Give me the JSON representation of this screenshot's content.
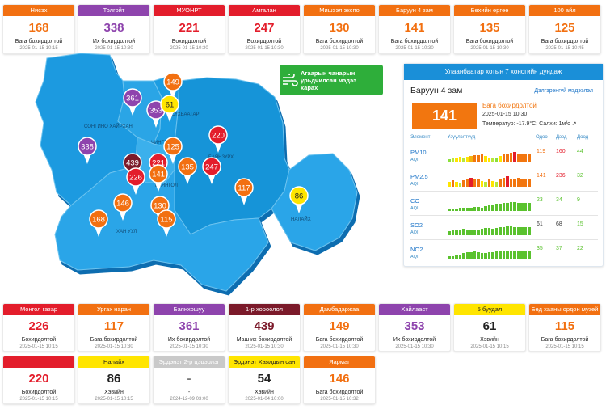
{
  "colors": {
    "good": "#5ac22e",
    "moderate": "#f2760f",
    "unhealthy_sensitive": "#f27011",
    "unhealthy": "#e31d2b",
    "very_unhealthy": "#8e44ad",
    "hazardous": "#7b1a2a",
    "yellow": "#ffe500",
    "unknown": "#c9c9c9"
  },
  "top_cards": [
    {
      "name": "Нисэх",
      "value": "168",
      "level": "Бага бохирдолтой",
      "time": "2025-01-15 10:15",
      "color": "#f27011",
      "value_color": "#f27011"
    },
    {
      "name": "Толгойт",
      "value": "338",
      "level": "Их бохирдолтой",
      "time": "2025-01-15 10:30",
      "color": "#8e44ad",
      "value_color": "#8e44ad"
    },
    {
      "name": "МУОНРТ",
      "value": "221",
      "level": "Бохирдолтой",
      "time": "2025-01-15 10:30",
      "color": "#e31d2b",
      "value_color": "#e31d2b"
    },
    {
      "name": "Амгалан",
      "value": "247",
      "level": "Бохирдолтой",
      "time": "2025-01-15 10:30",
      "color": "#e31d2b",
      "value_color": "#e31d2b"
    },
    {
      "name": "Мишээл экспо",
      "value": "130",
      "level": "Бага бохирдолтой",
      "time": "2025-01-15 10:30",
      "color": "#f27011",
      "value_color": "#f27011"
    },
    {
      "name": "Баруун 4 зам",
      "value": "141",
      "level": "Бага бохирдолтой",
      "time": "2025-01-15 10:30",
      "color": "#f27011",
      "value_color": "#f27011"
    },
    {
      "name": "Бөхийн өргөө",
      "value": "135",
      "level": "Бага бохирдолтой",
      "time": "2025-01-15 10:30",
      "color": "#f27011",
      "value_color": "#f27011"
    },
    {
      "name": "100 айл",
      "value": "125",
      "level": "Бага бохирдолтой",
      "time": "2025-01-15 10:45",
      "color": "#f27011",
      "value_color": "#f27011"
    }
  ],
  "map": {
    "district_labels": [
      "СОНГИНО ХАЙРХАН",
      "ЧИНГЭЛТЭЙ",
      "СҮХБААТАР",
      "БАЯНЗҮРХ",
      "БАЯНГОЛ",
      "ХАН УУЛ",
      "НАЛАЙХ"
    ],
    "markers": [
      {
        "value": "149",
        "color": "#f27011"
      },
      {
        "value": "361",
        "color": "#8e44ad"
      },
      {
        "value": "353",
        "color": "#8e44ad"
      },
      {
        "value": "61",
        "color": "#ffe500"
      },
      {
        "value": "220",
        "color": "#e31d2b"
      },
      {
        "value": "338",
        "color": "#8e44ad"
      },
      {
        "value": "125",
        "color": "#f27011"
      },
      {
        "value": "439",
        "color": "#7b1a2a"
      },
      {
        "value": "221",
        "color": "#e31d2b"
      },
      {
        "value": "226",
        "color": "#e31d2b"
      },
      {
        "value": "141",
        "color": "#f27011"
      },
      {
        "value": "135",
        "color": "#f27011"
      },
      {
        "value": "247",
        "color": "#e31d2b"
      },
      {
        "value": "117",
        "color": "#f27011"
      },
      {
        "value": "146",
        "color": "#f27011"
      },
      {
        "value": "130",
        "color": "#f27011"
      },
      {
        "value": "86",
        "color": "#ffe500"
      },
      {
        "value": "168",
        "color": "#f27011"
      },
      {
        "value": "115",
        "color": "#f27011"
      }
    ]
  },
  "forecast_button": {
    "line1": "Агаарын чанарын",
    "line2": "урьдчилсан мэдээ",
    "line3": "харах"
  },
  "panel": {
    "header": "Улаанбаатар хотын 7 хоногийн дундаж",
    "station": "Баруун 4 зам",
    "details_link": "Дэлгэрэнгүй мэдээлэл",
    "aqi": "141",
    "level": "Бага бохирдолтой",
    "timestamp": "2025-01-15 10:30",
    "meta": "Температур: -17.9°C; Салхи: 1м/с",
    "col_element": "Элемент",
    "col_indicator": "Үзүүлэлтүүд",
    "col_now": "Одоо",
    "col_max": "Дээд",
    "col_min": "Доод",
    "pollutants": [
      {
        "name": "PM10",
        "unit": "AQI",
        "now": "119",
        "max": "160",
        "min": "44",
        "now_color": "#f27011",
        "max_color": "#e31d2b",
        "min_color": "#5ac22e"
      },
      {
        "name": "PM2.5",
        "unit": "AQI",
        "now": "141",
        "max": "236",
        "min": "32",
        "now_color": "#f27011",
        "max_color": "#e31d2b",
        "min_color": "#5ac22e"
      },
      {
        "name": "CO",
        "unit": "AQI",
        "now": "23",
        "max": "34",
        "min": "9",
        "now_color": "#5ac22e",
        "max_color": "#5ac22e",
        "min_color": "#5ac22e"
      },
      {
        "name": "SO2",
        "unit": "AQI",
        "now": "61",
        "max": "68",
        "min": "15",
        "now_color": "#333333",
        "max_color": "#333333",
        "min_color": "#5ac22e"
      },
      {
        "name": "NO2",
        "unit": "AQI",
        "now": "35",
        "max": "37",
        "min": "22",
        "now_color": "#5ac22e",
        "max_color": "#5ac22e",
        "min_color": "#5ac22e"
      }
    ]
  },
  "bottom_cards": [
    {
      "name": "Монгол газар",
      "value": "226",
      "level": "Бохирдолтой",
      "time": "2025-01-15 10:15",
      "color": "#e31d2b",
      "value_color": "#e31d2b"
    },
    {
      "name": "Ургах наран",
      "value": "117",
      "level": "Бага бохирдолтой",
      "time": "2025-01-15 10:30",
      "color": "#f27011",
      "value_color": "#f27011"
    },
    {
      "name": "Баянхошуу",
      "value": "361",
      "level": "Их бохирдолтой",
      "time": "2025-01-15 10:30",
      "color": "#8e44ad",
      "value_color": "#8e44ad"
    },
    {
      "name": "1-р хороолол",
      "value": "439",
      "level": "Маш их бохирдолтой",
      "time": "2025-01-15 10:30",
      "color": "#7b1a2a",
      "value_color": "#7b1a2a"
    },
    {
      "name": "Дамбадаржаа",
      "value": "149",
      "level": "Бага бохирдолтой",
      "time": "2025-01-15 10:30",
      "color": "#f27011",
      "value_color": "#f27011"
    },
    {
      "name": "Хайлааст",
      "value": "353",
      "level": "Их бохирдолтой",
      "time": "2025-01-15 10:30",
      "color": "#8e44ad",
      "value_color": "#8e44ad"
    },
    {
      "name": "5 буудал",
      "value": "61",
      "level": "Хэвийн",
      "time": "2025-01-15 10:15",
      "color": "#ffe500",
      "value_color": "#222222"
    },
    {
      "name": "Бөд хааны ордон музей",
      "value": "115",
      "level": "Бага бохирдолтой",
      "time": "2025-01-15 10:15",
      "color": "#f27011",
      "value_color": "#f27011"
    },
    {
      "name": "",
      "value": "220",
      "level": "Бохирдолтой",
      "time": "2025-01-15 10:15",
      "color": "#e31d2b",
      "value_color": "#e31d2b"
    },
    {
      "name": "Налайх",
      "value": "86",
      "level": "Хэвийн",
      "time": "2025-01-15 10:15",
      "color": "#ffe500",
      "value_color": "#222222"
    },
    {
      "name": "Эрдэнэт 2-р цэцэрлэг",
      "value": "-",
      "level": "-",
      "time": "2024-12-09 03:00",
      "color": "#c9c9c9",
      "value_color": "#777777"
    },
    {
      "name": "Эрдэнэт Хаялдын сан",
      "value": "54",
      "level": "Хэвийн",
      "time": "2025-01-04 10:00",
      "color": "#ffe500",
      "value_color": "#222222"
    },
    {
      "name": "Яармаг",
      "value": "146",
      "level": "Бага бохирдолтой",
      "time": "2025-01-15 10:32",
      "color": "#f27011",
      "value_color": "#f27011"
    }
  ]
}
